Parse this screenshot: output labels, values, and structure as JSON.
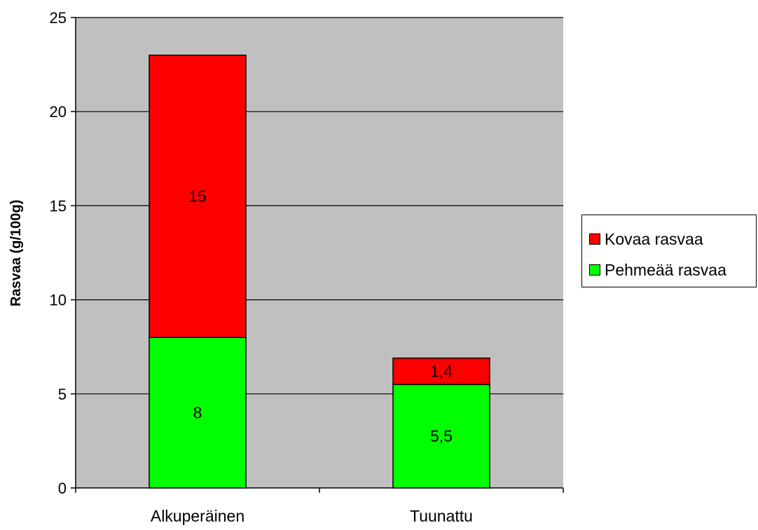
{
  "chart_data": {
    "type": "bar",
    "stacked": true,
    "categories": [
      "Alkuperäinen",
      "Tuunattu"
    ],
    "series": [
      {
        "name": "Pehmeää rasvaa",
        "values": [
          8,
          5.5
        ],
        "labels": [
          "8",
          "5,5"
        ],
        "color": "#00ff00"
      },
      {
        "name": "Kovaa rasvaa",
        "values": [
          15,
          1.4
        ],
        "labels": [
          "15",
          "1,4"
        ],
        "color": "#ff0000"
      }
    ],
    "ylabel": "Rasvaa (g/100g)",
    "xlabel": "",
    "ylim": [
      0,
      25
    ],
    "yticks": [
      "0",
      "5",
      "10",
      "15",
      "20",
      "25"
    ],
    "grid": true,
    "plot_background": "#c0c0c0",
    "legend": {
      "position": "right",
      "items": [
        {
          "label": "Kovaa rasvaa",
          "color": "#ff0000"
        },
        {
          "label": "Pehmeää rasvaa",
          "color": "#00ff00"
        }
      ]
    }
  }
}
